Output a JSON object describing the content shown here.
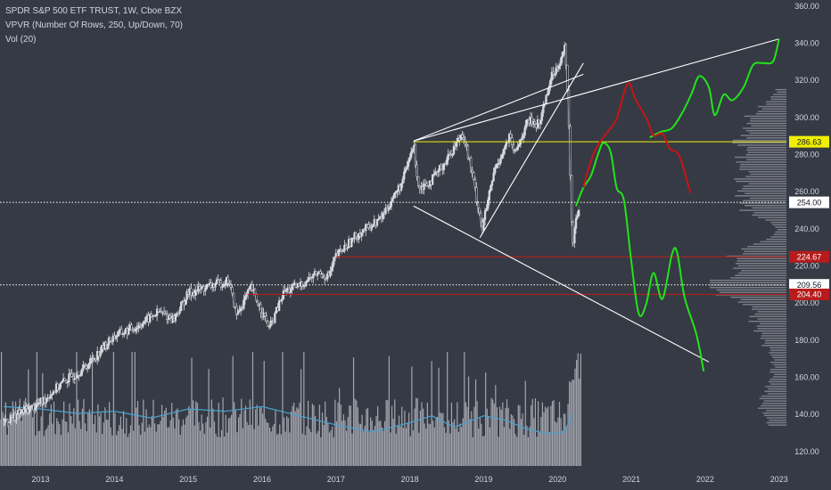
{
  "header": {
    "title": "SPDR S&P 500 ETF TRUST, 1W, Cboe BZX",
    "indicator_1": "VPVR (Number Of Rows, 250, Up/Down, 70)",
    "indicator_2": "Vol (20)"
  },
  "colors": {
    "background": "#363a45",
    "axis_text": "#d1d4dc",
    "candle": "#d9dbe0",
    "volume_bar": "#c8cad0",
    "volume_ma": "#4aa3d0",
    "trendline": "#ffffff",
    "level_yellow": "#f0f000",
    "level_red": "#b71c1c",
    "level_white_dotted": "#ffffff",
    "projection_green": "#22e31a",
    "projection_red": "#c81414",
    "vpvr": "#8a8d95"
  },
  "chart_data": {
    "type": "line",
    "title": "SPDR S&P 500 ETF TRUST, 1W, Cboe BZX",
    "xlabel": "",
    "ylabel": "",
    "x_ticks": [
      "2013",
      "2014",
      "2015",
      "2016",
      "2017",
      "2018",
      "2019",
      "2020",
      "2021",
      "2022",
      "2023"
    ],
    "y_ticks": [
      120,
      140,
      160,
      180,
      200,
      220,
      240,
      260,
      280,
      300,
      320,
      340,
      360
    ],
    "ylim": [
      112,
      363
    ],
    "xlim": [
      2012.45,
      2023.1
    ],
    "grid": false,
    "price_line": {
      "name": "",
      "points": [
        [
          2012.5,
          136
        ],
        [
          2012.8,
          142
        ],
        [
          2013.0,
          146
        ],
        [
          2013.3,
          157
        ],
        [
          2013.6,
          165
        ],
        [
          2013.9,
          178
        ],
        [
          2014.0,
          182
        ],
        [
          2014.3,
          187
        ],
        [
          2014.6,
          195
        ],
        [
          2014.8,
          191
        ],
        [
          2015.0,
          205
        ],
        [
          2015.3,
          209
        ],
        [
          2015.55,
          212
        ],
        [
          2015.65,
          193
        ],
        [
          2015.85,
          208
        ],
        [
          2016.1,
          186
        ],
        [
          2016.3,
          206
        ],
        [
          2016.5,
          209
        ],
        [
          2016.75,
          216
        ],
        [
          2016.9,
          214
        ],
        [
          2017.0,
          225
        ],
        [
          2017.3,
          237
        ],
        [
          2017.6,
          245
        ],
        [
          2017.9,
          265
        ],
        [
          2018.05,
          285
        ],
        [
          2018.12,
          262
        ],
        [
          2018.3,
          266
        ],
        [
          2018.5,
          277
        ],
        [
          2018.72,
          292
        ],
        [
          2018.85,
          268
        ],
        [
          2018.98,
          240
        ],
        [
          2019.15,
          272
        ],
        [
          2019.35,
          289
        ],
        [
          2019.42,
          280
        ],
        [
          2019.6,
          298
        ],
        [
          2019.75,
          296
        ],
        [
          2019.9,
          320
        ],
        [
          2020.05,
          332
        ],
        [
          2020.1,
          337
        ],
        [
          2020.15,
          302
        ],
        [
          2020.2,
          230
        ],
        [
          2020.25,
          246
        ],
        [
          2020.3,
          252
        ]
      ]
    },
    "levels": [
      {
        "value": 286.63,
        "label": "286.63",
        "style": "solid",
        "color": "yellow"
      },
      {
        "value": 254.0,
        "label": "254.00",
        "style": "dotted",
        "color": "white"
      },
      {
        "value": 224.67,
        "label": "224.67",
        "style": "solid",
        "color": "red"
      },
      {
        "value": 209.56,
        "label": "209.56",
        "style": "dotted",
        "color": "white"
      },
      {
        "value": 204.4,
        "label": "204.40",
        "style": "solid",
        "color": "red"
      }
    ],
    "trendlines": [
      {
        "from": [
          2018.05,
          287
        ],
        "to": [
          2023.0,
          342
        ]
      },
      {
        "from": [
          2018.05,
          252
        ],
        "to": [
          2022.05,
          168
        ]
      },
      {
        "from": [
          2018.95,
          235
        ],
        "to": [
          2020.35,
          329
        ]
      },
      {
        "from": [
          2018.05,
          287
        ],
        "to": [
          2020.35,
          323
        ]
      }
    ],
    "projections": [
      {
        "name": "",
        "color": "green",
        "points": [
          [
            2020.25,
            252
          ],
          [
            2020.35,
            262
          ],
          [
            2020.45,
            268
          ],
          [
            2020.55,
            280
          ],
          [
            2020.62,
            286
          ],
          [
            2020.72,
            281
          ],
          [
            2020.8,
            262
          ],
          [
            2020.9,
            255
          ],
          [
            2021.0,
            222
          ],
          [
            2021.1,
            194
          ],
          [
            2021.2,
            199
          ],
          [
            2021.3,
            216
          ],
          [
            2021.42,
            202
          ],
          [
            2021.55,
            226
          ],
          [
            2021.62,
            227
          ],
          [
            2021.72,
            203
          ],
          [
            2021.88,
            183
          ],
          [
            2021.98,
            163
          ]
        ]
      },
      {
        "name": "",
        "color": "green",
        "points": [
          [
            2021.25,
            289
          ],
          [
            2021.4,
            292
          ],
          [
            2021.55,
            294
          ],
          [
            2021.7,
            303
          ],
          [
            2021.82,
            313
          ],
          [
            2021.92,
            322
          ],
          [
            2022.05,
            316
          ],
          [
            2022.13,
            301
          ],
          [
            2022.25,
            312
          ],
          [
            2022.37,
            309
          ],
          [
            2022.52,
            316
          ],
          [
            2022.65,
            328
          ],
          [
            2022.78,
            329
          ],
          [
            2022.92,
            330
          ],
          [
            2023.0,
            342
          ]
        ]
      },
      {
        "name": "",
        "color": "red",
        "points": [
          [
            2020.35,
            262
          ],
          [
            2020.45,
            276
          ],
          [
            2020.55,
            285
          ],
          [
            2020.68,
            292
          ],
          [
            2020.8,
            299
          ],
          [
            2020.95,
            318
          ],
          [
            2021.05,
            310
          ],
          [
            2021.15,
            303
          ],
          [
            2021.22,
            298
          ],
          [
            2021.3,
            290
          ],
          [
            2021.42,
            291
          ],
          [
            2021.52,
            283
          ],
          [
            2021.65,
            279
          ],
          [
            2021.8,
            259
          ]
        ]
      }
    ],
    "volume_ma_relative": [
      [
        2012.5,
        0.52
      ],
      [
        2013.0,
        0.5
      ],
      [
        2013.5,
        0.46
      ],
      [
        2014.0,
        0.48
      ],
      [
        2014.5,
        0.42
      ],
      [
        2015.0,
        0.5
      ],
      [
        2015.5,
        0.48
      ],
      [
        2016.0,
        0.52
      ],
      [
        2016.5,
        0.44
      ],
      [
        2017.0,
        0.36
      ],
      [
        2017.5,
        0.3
      ],
      [
        2018.0,
        0.38
      ],
      [
        2018.3,
        0.44
      ],
      [
        2018.6,
        0.34
      ],
      [
        2019.0,
        0.44
      ],
      [
        2019.3,
        0.4
      ],
      [
        2019.6,
        0.32
      ],
      [
        2019.9,
        0.28
      ],
      [
        2020.1,
        0.3
      ],
      [
        2020.2,
        0.46
      ]
    ]
  }
}
